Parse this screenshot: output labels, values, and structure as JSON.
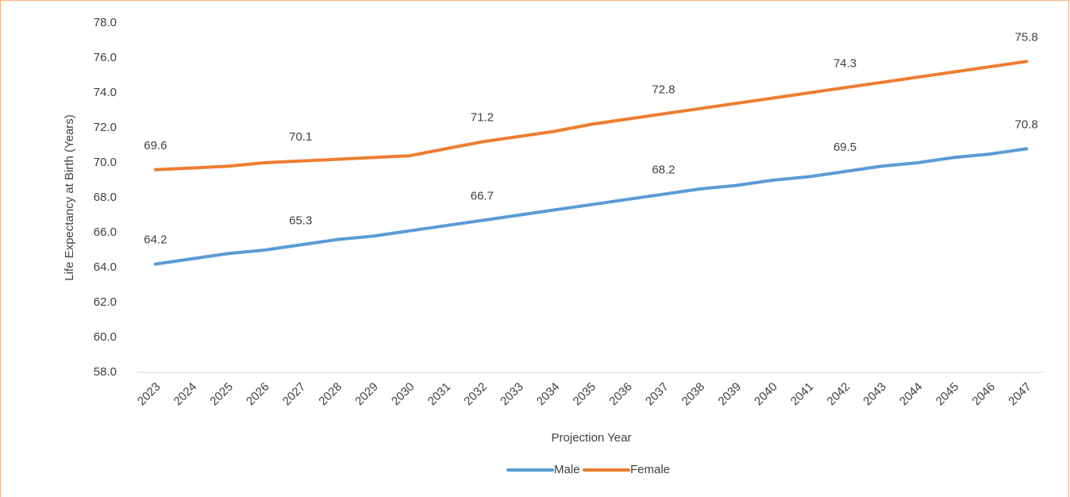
{
  "chart_data": {
    "type": "line",
    "x_label": "Projection Year",
    "y_label": "Life Expectancy at Birth (Years)",
    "categories": [
      "2023",
      "2024",
      "2025",
      "2026",
      "2027",
      "2028",
      "2029",
      "2030",
      "2031",
      "2032",
      "2033",
      "2034",
      "2035",
      "2036",
      "2037",
      "2038",
      "2039",
      "2040",
      "2041",
      "2042",
      "2043",
      "2044",
      "2045",
      "2046",
      "2047"
    ],
    "series": [
      {
        "name": "Male",
        "color": "#5b9bd5",
        "values": [
          64.2,
          64.5,
          64.8,
          65.0,
          65.3,
          65.6,
          65.8,
          66.1,
          66.4,
          66.7,
          67.0,
          67.3,
          67.6,
          67.9,
          68.2,
          68.5,
          68.7,
          69.0,
          69.2,
          69.5,
          69.8,
          70.0,
          70.3,
          70.5,
          70.8
        ],
        "value_labels": [
          "64.2",
          null,
          null,
          null,
          "65.3",
          null,
          null,
          null,
          null,
          "66.7",
          null,
          null,
          null,
          null,
          "68.2",
          null,
          null,
          null,
          null,
          "69.5",
          null,
          null,
          null,
          null,
          "70.8"
        ]
      },
      {
        "name": "Female",
        "color": "#ed7d31",
        "values": [
          69.6,
          69.7,
          69.8,
          70.0,
          70.1,
          70.2,
          70.3,
          70.4,
          70.8,
          71.2,
          71.5,
          71.8,
          72.2,
          72.5,
          72.8,
          73.1,
          73.4,
          73.7,
          74.0,
          74.3,
          74.6,
          74.9,
          75.2,
          75.5,
          75.8
        ],
        "value_labels": [
          "69.6",
          null,
          null,
          null,
          "70.1",
          null,
          null,
          null,
          null,
          "71.2",
          null,
          null,
          null,
          null,
          "72.8",
          null,
          null,
          null,
          null,
          "74.3",
          null,
          null,
          null,
          null,
          "75.8"
        ]
      }
    ],
    "ylim": [
      58,
      78
    ],
    "yticks": [
      {
        "value": 58,
        "label": "58.0"
      },
      {
        "value": 60,
        "label": "60.0"
      },
      {
        "value": 62,
        "label": "62.0"
      },
      {
        "value": 64,
        "label": "64.0"
      },
      {
        "value": 66,
        "label": "66.0"
      },
      {
        "value": 68,
        "label": "68.0"
      },
      {
        "value": 70,
        "label": "70.0"
      },
      {
        "value": 72,
        "label": "72.0"
      },
      {
        "value": 74,
        "label": "74.0"
      },
      {
        "value": 76,
        "label": "76.0"
      },
      {
        "value": 78,
        "label": "78.0"
      }
    ],
    "legend": "bottom"
  }
}
